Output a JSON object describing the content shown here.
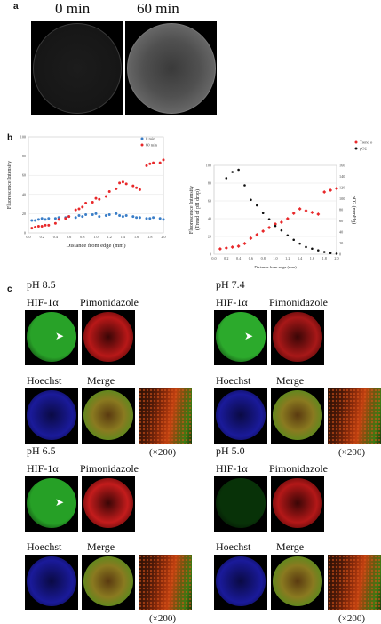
{
  "panel_a": {
    "letter": "a",
    "titles": [
      "0 min",
      "60 min"
    ]
  },
  "panel_b": {
    "letter": "b"
  },
  "panel_c": {
    "letter": "c",
    "groups": [
      {
        "ph": "pH 8.5",
        "hif": "HIF-1α",
        "pimo": "Pimonidazole",
        "hoechst": "Hoechst",
        "merge": "Merge",
        "mag": "(×200)",
        "color": "#28a228",
        "red": "#b81818"
      },
      {
        "ph": "pH 7.4",
        "hif": "HIF-1α",
        "pimo": "Pimonidazole",
        "hoechst": "Hoechst",
        "merge": "Merge",
        "mag": "(×200)",
        "color": "#2caa2c",
        "red": "#a81818"
      },
      {
        "ph": "pH 6.5",
        "hif": "HIF-1α",
        "pimo": "Pimonidazole",
        "hoechst": "Hoechst",
        "merge": "Merge",
        "mag": "(×200)",
        "color": "#26a026",
        "red": "#c41c1c"
      },
      {
        "ph": "pH 5.0",
        "hif": "HIF-1α",
        "pimo": "Pimonidazole",
        "hoechst": "Hoechst",
        "merge": "Merge",
        "mag": "(×200)",
        "color": "#0f5a0f",
        "red": "#b41818"
      }
    ]
  },
  "chart_data": [
    {
      "type": "scatter",
      "xlabel": "Distance from edge (mm)",
      "ylabel": "Fluorescence Intensity",
      "xlim": [
        0,
        2.0
      ],
      "ylim": [
        0,
        100
      ],
      "xticks": [
        "0.0",
        "0.2",
        "0.4",
        "0.6",
        "0.8",
        "1.0",
        "1.2",
        "1.4",
        "1.6",
        "1.8",
        "2.0"
      ],
      "yticks": [
        "0",
        "20",
        "40",
        "60",
        "80",
        "100"
      ],
      "legend_position": "top-right",
      "series": [
        {
          "name": "0 min",
          "color": "#3a7ec8",
          "x": [
            0.05,
            0.1,
            0.15,
            0.2,
            0.25,
            0.3,
            0.4,
            0.45,
            0.55,
            0.6,
            0.7,
            0.75,
            0.8,
            0.85,
            0.95,
            1.0,
            1.05,
            1.15,
            1.2,
            1.3,
            1.35,
            1.4,
            1.45,
            1.55,
            1.6,
            1.65,
            1.75,
            1.8,
            1.85,
            1.95,
            2.0
          ],
          "y": [
            13,
            13,
            14,
            15,
            14,
            15,
            15,
            16,
            16,
            17,
            16,
            18,
            17,
            19,
            19,
            20,
            17,
            18,
            19,
            20,
            18,
            17,
            18,
            17,
            16,
            16,
            15,
            15,
            16,
            15,
            14
          ]
        },
        {
          "name": "60 min",
          "color": "#e8282a",
          "x": [
            0.05,
            0.1,
            0.15,
            0.2,
            0.25,
            0.3,
            0.4,
            0.45,
            0.55,
            0.6,
            0.7,
            0.75,
            0.8,
            0.85,
            0.95,
            1.0,
            1.05,
            1.15,
            1.2,
            1.3,
            1.35,
            1.4,
            1.45,
            1.55,
            1.6,
            1.65,
            1.75,
            1.8,
            1.85,
            1.95,
            2.0
          ],
          "y": [
            5,
            6,
            7,
            7,
            8,
            8,
            10,
            14,
            15,
            17,
            24,
            25,
            27,
            31,
            32,
            36,
            35,
            38,
            43,
            46,
            52,
            53,
            51,
            49,
            47,
            45,
            70,
            72,
            73,
            73,
            76
          ]
        }
      ]
    },
    {
      "type": "scatter",
      "xlabel": "Distance from edge (mm)",
      "ylabel": "Fluorescence Intensity\n(Trend of pH drop)",
      "ylabel_right": "pO2 (mmHg)",
      "xlim": [
        0,
        2.0
      ],
      "ylim": [
        0,
        100
      ],
      "ylim_right": [
        0,
        160
      ],
      "xticks": [
        "0.0",
        "0.2",
        "0.4",
        "0.6",
        "0.8",
        "1.0",
        "1.2",
        "1.4",
        "1.6",
        "1.8",
        "2.0"
      ],
      "yticks": [
        "0",
        "20",
        "40",
        "60",
        "80",
        "100"
      ],
      "yticks_right": [
        "0",
        "20",
        "40",
        "60",
        "80",
        "100",
        "120",
        "140",
        "160"
      ],
      "legend_position": "top-right",
      "series": [
        {
          "name": "Trend o",
          "color": "#e8282a",
          "axis": "left",
          "x": [
            0.1,
            0.2,
            0.3,
            0.4,
            0.5,
            0.6,
            0.7,
            0.8,
            0.9,
            1.0,
            1.1,
            1.2,
            1.3,
            1.4,
            1.5,
            1.6,
            1.7,
            1.8,
            1.9,
            2.0
          ],
          "y": [
            6,
            7,
            8,
            9,
            12,
            18,
            22,
            26,
            30,
            34,
            36,
            40,
            46,
            51,
            49,
            47,
            45,
            70,
            72,
            74
          ]
        },
        {
          "name": "pO2",
          "color": "#111111",
          "axis": "right",
          "x": [
            0.2,
            0.3,
            0.4,
            0.5,
            0.6,
            0.7,
            0.8,
            0.9,
            1.0,
            1.1,
            1.2,
            1.3,
            1.4,
            1.5,
            1.6,
            1.7,
            1.8,
            1.9,
            2.0
          ],
          "y": [
            137,
            148,
            152,
            124,
            98,
            88,
            74,
            63,
            51,
            43,
            34,
            26,
            19,
            13,
            10,
            7,
            4,
            2,
            1
          ]
        }
      ]
    }
  ]
}
